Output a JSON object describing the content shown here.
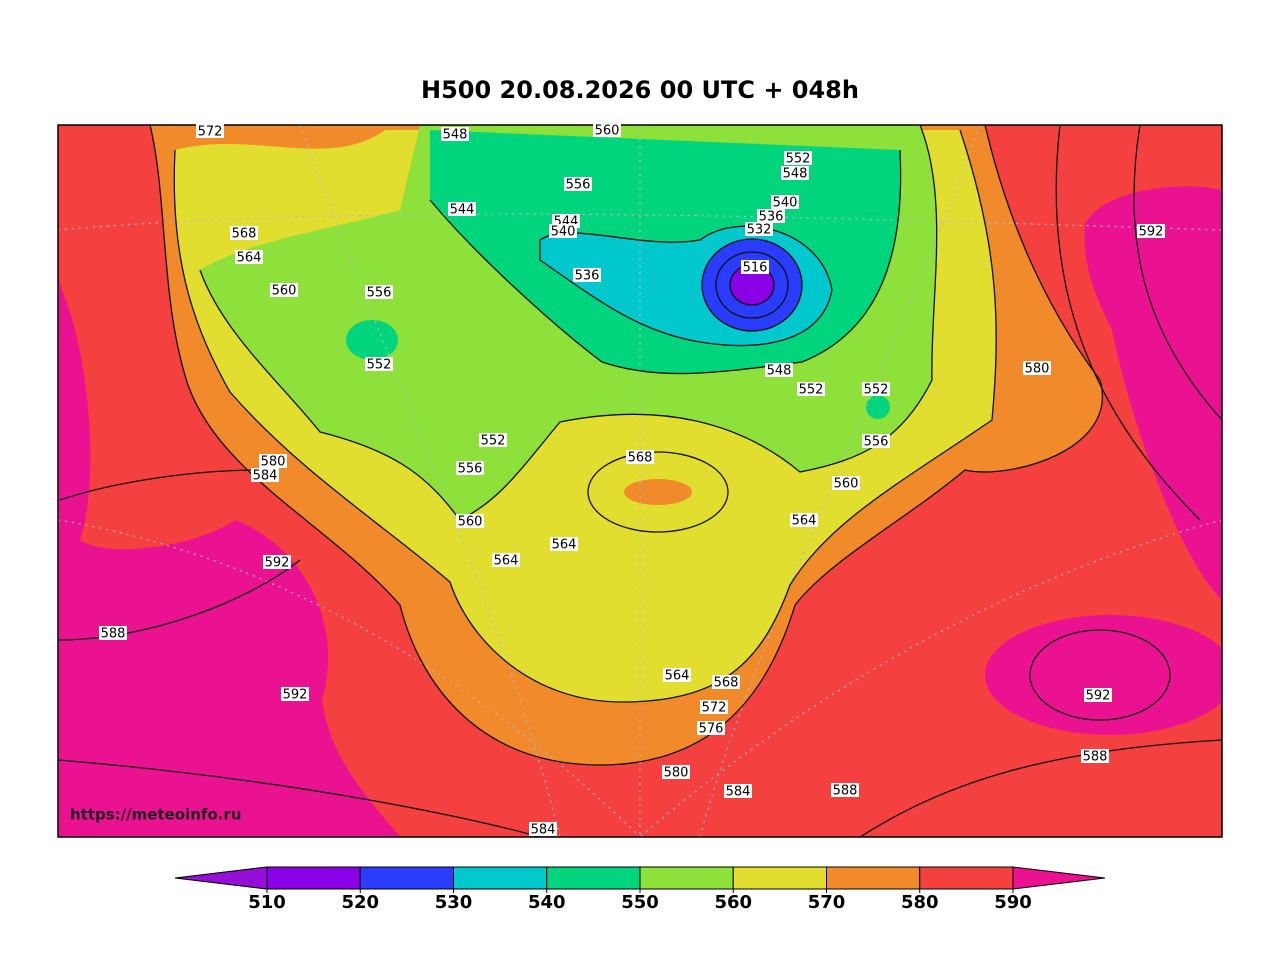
{
  "title": "H500  20.08.2026 00 UTC + 048h",
  "watermark": "https://meteoinfo.ru",
  "colorbar": {
    "levels": [
      510,
      520,
      530,
      540,
      550,
      560,
      570,
      580,
      590
    ],
    "colors": [
      "#9410d8",
      "#8a00e6",
      "#2a3cff",
      "#00c8cc",
      "#00d47c",
      "#8ee03a",
      "#e2de30",
      "#f08a2a",
      "#f4403e",
      "#ea1290"
    ]
  },
  "contour_labels": [
    572,
    548,
    560,
    552,
    548,
    556,
    540,
    544,
    536,
    532,
    544,
    540,
    568,
    592,
    564,
    516,
    536,
    560,
    556,
    552,
    548,
    552,
    552,
    580,
    556,
    552,
    568,
    556,
    580,
    584,
    560,
    564,
    560,
    564,
    564,
    592,
    588,
    564,
    568,
    592,
    592,
    572,
    576,
    580,
    588,
    584,
    588,
    584
  ]
}
